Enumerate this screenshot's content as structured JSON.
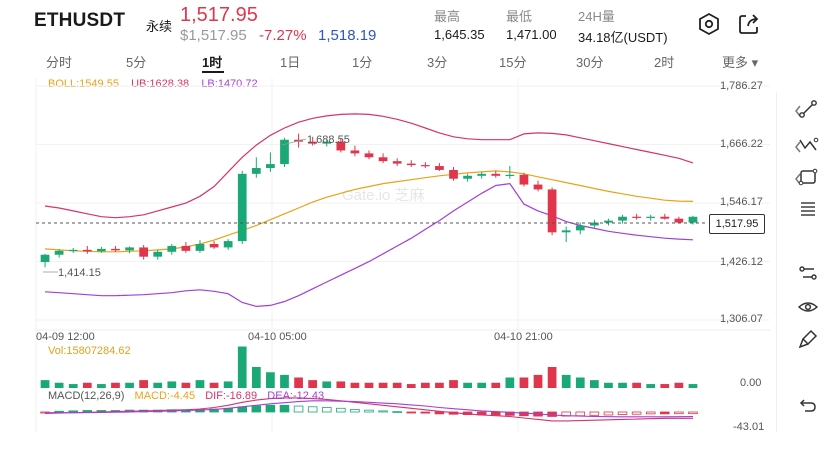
{
  "header": {
    "symbol": "ETHUSDT",
    "contract_type": "永续",
    "last_price": "1,517.95",
    "usd_price": "$1,517.95",
    "change_pct": "-7.27%",
    "mark_price": "1,518.19",
    "stats": [
      {
        "label": "最高",
        "value": "1,645.35"
      },
      {
        "label": "最低",
        "value": "1,471.00"
      },
      {
        "label": "24H量",
        "value": "34.18亿(USDT)"
      }
    ],
    "icons": [
      "settings-hexagon-icon",
      "share-icon"
    ]
  },
  "timeframes": {
    "items": [
      "分时",
      "5分",
      "1时",
      "1日",
      "1分",
      "3分",
      "15分",
      "30分",
      "2时",
      "更多 ▾"
    ],
    "selected": "1时"
  },
  "boll": {
    "boll": "BOLL:1549.55",
    "ub": "UB:1628.38",
    "lb": "LB:1470.72",
    "colors": {
      "boll": "#e8a317",
      "ub": "#d6336c",
      "lb": "#a33fd6"
    }
  },
  "price_axis": [
    "1,786.27",
    "1,666.22",
    "1,546.17",
    "1,426.12",
    "1,306.07"
  ],
  "current_price_tag": "1,517.95",
  "time_axis": [
    "04-09 12:00",
    "04-10 05:00",
    "04-10 21:00"
  ],
  "annotations": {
    "high": "1,688.55",
    "low": "1,414.15"
  },
  "watermark": "Gate.io 芝麻",
  "volume": {
    "legend": "Vol:15807284.62",
    "axis_label": "0.00"
  },
  "macd": {
    "macd_label": "MACD(12,26,9)",
    "macd_value": "MACD:-4.45",
    "dif": "DIF:-16.89",
    "dea": "DEA:-12.43",
    "axis_label": "-43.01",
    "colors": {
      "macd": "#e8a317",
      "dif": "#d6336c",
      "dea": "#a33fd6"
    }
  },
  "chart_data": {
    "type": "candlestick",
    "y_range": [
      1306.07,
      1786.27
    ],
    "candles": [
      {
        "o": 1425,
        "h": 1442,
        "l": 1414.15,
        "c": 1440
      },
      {
        "o": 1440,
        "h": 1452,
        "l": 1434,
        "c": 1448
      },
      {
        "o": 1448,
        "h": 1454,
        "l": 1444,
        "c": 1450
      },
      {
        "o": 1450,
        "h": 1458,
        "l": 1442,
        "c": 1447
      },
      {
        "o": 1447,
        "h": 1456,
        "l": 1444,
        "c": 1452
      },
      {
        "o": 1452,
        "h": 1458,
        "l": 1446,
        "c": 1449
      },
      {
        "o": 1449,
        "h": 1457,
        "l": 1443,
        "c": 1455
      },
      {
        "o": 1455,
        "h": 1460,
        "l": 1430,
        "c": 1436
      },
      {
        "o": 1436,
        "h": 1450,
        "l": 1430,
        "c": 1446
      },
      {
        "o": 1446,
        "h": 1462,
        "l": 1440,
        "c": 1458
      },
      {
        "o": 1458,
        "h": 1466,
        "l": 1444,
        "c": 1448
      },
      {
        "o": 1448,
        "h": 1470,
        "l": 1444,
        "c": 1462
      },
      {
        "o": 1462,
        "h": 1468,
        "l": 1452,
        "c": 1455
      },
      {
        "o": 1455,
        "h": 1472,
        "l": 1450,
        "c": 1468
      },
      {
        "o": 1468,
        "h": 1612,
        "l": 1462,
        "c": 1606
      },
      {
        "o": 1606,
        "h": 1640,
        "l": 1598,
        "c": 1618
      },
      {
        "o": 1618,
        "h": 1650,
        "l": 1610,
        "c": 1626
      },
      {
        "o": 1626,
        "h": 1680,
        "l": 1620,
        "c": 1676
      },
      {
        "o": 1676,
        "h": 1688.55,
        "l": 1660,
        "c": 1672
      },
      {
        "o": 1672,
        "h": 1682,
        "l": 1664,
        "c": 1668
      },
      {
        "o": 1668,
        "h": 1676,
        "l": 1662,
        "c": 1672
      },
      {
        "o": 1672,
        "h": 1678,
        "l": 1650,
        "c": 1654
      },
      {
        "o": 1654,
        "h": 1664,
        "l": 1642,
        "c": 1648
      },
      {
        "o": 1648,
        "h": 1654,
        "l": 1636,
        "c": 1640
      },
      {
        "o": 1640,
        "h": 1648,
        "l": 1628,
        "c": 1632
      },
      {
        "o": 1632,
        "h": 1638,
        "l": 1622,
        "c": 1627
      },
      {
        "o": 1627,
        "h": 1634,
        "l": 1620,
        "c": 1624
      },
      {
        "o": 1624,
        "h": 1630,
        "l": 1618,
        "c": 1622
      },
      {
        "o": 1622,
        "h": 1628,
        "l": 1612,
        "c": 1614
      },
      {
        "o": 1614,
        "h": 1620,
        "l": 1592,
        "c": 1596
      },
      {
        "o": 1596,
        "h": 1606,
        "l": 1590,
        "c": 1602
      },
      {
        "o": 1602,
        "h": 1610,
        "l": 1596,
        "c": 1606
      },
      {
        "o": 1606,
        "h": 1612,
        "l": 1598,
        "c": 1602
      },
      {
        "o": 1602,
        "h": 1622,
        "l": 1596,
        "c": 1604
      },
      {
        "o": 1604,
        "h": 1608,
        "l": 1580,
        "c": 1584
      },
      {
        "o": 1584,
        "h": 1592,
        "l": 1570,
        "c": 1574
      },
      {
        "o": 1574,
        "h": 1578,
        "l": 1480,
        "c": 1486
      },
      {
        "o": 1486,
        "h": 1498,
        "l": 1466,
        "c": 1490
      },
      {
        "o": 1490,
        "h": 1506,
        "l": 1482,
        "c": 1500
      },
      {
        "o": 1500,
        "h": 1512,
        "l": 1494,
        "c": 1506
      },
      {
        "o": 1506,
        "h": 1514,
        "l": 1500,
        "c": 1510
      },
      {
        "o": 1510,
        "h": 1522,
        "l": 1504,
        "c": 1518
      },
      {
        "o": 1518,
        "h": 1524,
        "l": 1512,
        "c": 1516
      },
      {
        "o": 1516,
        "h": 1522,
        "l": 1510,
        "c": 1518
      },
      {
        "o": 1518,
        "h": 1524,
        "l": 1512,
        "c": 1514
      },
      {
        "o": 1514,
        "h": 1518,
        "l": 1504,
        "c": 1506
      },
      {
        "o": 1506,
        "h": 1520,
        "l": 1502,
        "c": 1517.95
      }
    ],
    "boll_mid": [
      1452,
      1450,
      1448,
      1447,
      1446,
      1446,
      1447,
      1448,
      1450,
      1452,
      1456,
      1462,
      1470,
      1480,
      1490,
      1500,
      1512,
      1524,
      1536,
      1548,
      1558,
      1566,
      1574,
      1580,
      1586,
      1590,
      1594,
      1598,
      1602,
      1605,
      1608,
      1610,
      1612,
      1610,
      1606,
      1600,
      1594,
      1588,
      1582,
      1576,
      1570,
      1565,
      1560,
      1556,
      1552,
      1550,
      1549.55
    ],
    "boll_ub": [
      1540,
      1536,
      1530,
      1524,
      1518,
      1516,
      1518,
      1522,
      1530,
      1538,
      1546,
      1560,
      1580,
      1610,
      1640,
      1665,
      1685,
      1700,
      1712,
      1720,
      1725,
      1728,
      1729,
      1728,
      1724,
      1718,
      1710,
      1700,
      1690,
      1682,
      1678,
      1676,
      1676,
      1676,
      1688,
      1690,
      1689,
      1686,
      1680,
      1674,
      1668,
      1662,
      1656,
      1650,
      1644,
      1638,
      1628.38
    ],
    "boll_lb": [
      1364,
      1362,
      1360,
      1358,
      1356,
      1356,
      1357,
      1358,
      1360,
      1362,
      1366,
      1368,
      1365,
      1360,
      1342,
      1334,
      1336,
      1344,
      1356,
      1370,
      1384,
      1398,
      1412,
      1426,
      1442,
      1458,
      1474,
      1492,
      1510,
      1530,
      1548,
      1566,
      1582,
      1586,
      1544,
      1530,
      1520,
      1508,
      1500,
      1494,
      1488,
      1484,
      1480,
      1477,
      1474,
      1472,
      1470.72
    ],
    "volume": [
      3,
      2,
      1.5,
      2,
      1.5,
      2,
      2,
      3,
      2,
      2.5,
      2,
      3,
      2,
      2.5,
      15.8,
      8,
      6,
      5,
      4,
      3,
      2.5,
      2.5,
      2,
      2,
      2,
      2,
      1.5,
      2,
      2,
      3,
      2,
      2,
      2,
      4,
      4,
      5,
      8,
      5,
      4,
      3,
      2,
      2,
      2,
      1.5,
      1.5,
      2,
      1.5
    ],
    "volume_max": 16,
    "macd_hist": [
      -1,
      2,
      3,
      4,
      4,
      4,
      5,
      5,
      5,
      6,
      6,
      7,
      8,
      10,
      14,
      16,
      18,
      18,
      16,
      14,
      12,
      10,
      7,
      5,
      3,
      1,
      -1,
      -3,
      -5,
      -6,
      -7,
      -8,
      -8,
      -9,
      -10,
      -11,
      -12,
      -11,
      -10,
      -9,
      -8,
      -7,
      -6,
      -5,
      -5,
      -4.5,
      -4.45
    ],
    "macd_dif": [
      -4,
      -3,
      -2,
      -1,
      0,
      1,
      2,
      3,
      4,
      5,
      6,
      8,
      12,
      18,
      26,
      32,
      36,
      38,
      38,
      36,
      34,
      30,
      26,
      22,
      18,
      14,
      10,
      6,
      2,
      -2,
      -5,
      -8,
      -10,
      -12,
      -16,
      -20,
      -24,
      -24,
      -23,
      -22,
      -21,
      -20,
      -19,
      -18,
      -17,
      -17,
      -16.89
    ],
    "macd_dea": [
      -2,
      -2,
      -2,
      -1.5,
      -1,
      -0.5,
      0,
      1,
      2,
      3,
      4,
      5,
      7,
      10,
      14,
      18,
      22,
      25,
      28,
      30,
      30,
      29,
      28,
      26,
      24,
      22,
      19,
      16,
      12,
      9,
      6,
      3,
      1,
      -1,
      -3,
      -5,
      -8,
      -10,
      -11,
      -12,
      -12.5,
      -13,
      -13,
      -13,
      -12.8,
      -12.6,
      -12.43
    ],
    "macd_range": [
      -43.01,
      43.01
    ],
    "colors": {
      "up": "#1aa876",
      "down": "#e0364c"
    }
  }
}
